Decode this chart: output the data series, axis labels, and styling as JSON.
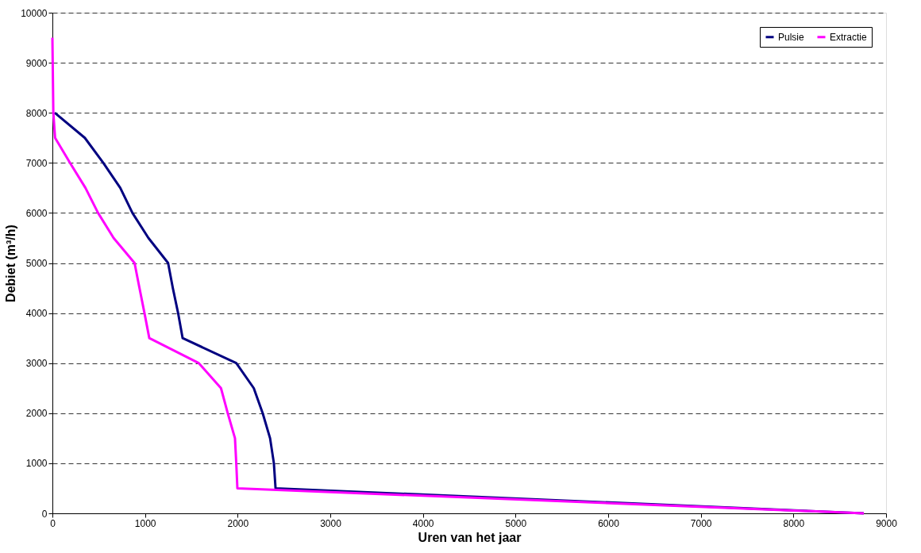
{
  "chart_data": {
    "type": "line",
    "xlabel": "Uren van het jaar",
    "ylabel": "Debiet (m³/h)",
    "xlim": [
      0,
      9000
    ],
    "xticks": [
      0,
      1000,
      2000,
      3000,
      4000,
      5000,
      6000,
      7000,
      8000,
      9000
    ],
    "ylim": [
      0,
      10000
    ],
    "yticks": [
      0,
      1000,
      2000,
      3000,
      4000,
      5000,
      6000,
      7000,
      8000,
      9000,
      10000
    ],
    "grid": "y",
    "legend": "top right",
    "marker": "none",
    "line_style": "solid",
    "series": [
      {
        "name": "Pulsie",
        "color": "#000080",
        "x": [
          25,
          350,
          550,
          733,
          864,
          1037,
          1249,
          1300,
          1357,
          1406,
          1985,
          2174,
          2270,
          2350,
          2391,
          2409,
          8760
        ],
        "values": [
          8000,
          7500,
          7000,
          6500,
          6000,
          5500,
          5000,
          4500,
          4000,
          3500,
          3000,
          2500,
          2000,
          1500,
          1000,
          500,
          0
        ]
      },
      {
        "name": "Extractie",
        "color": "#ff00ff",
        "x": [
          0,
          10,
          29,
          190,
          357,
          493,
          661,
          887,
          940,
          994,
          1046,
          1580,
          1820,
          1893,
          1971,
          1985,
          1997,
          8760
        ],
        "values": [
          9500,
          8000,
          7500,
          7000,
          6500,
          6000,
          5500,
          5000,
          4500,
          4000,
          3500,
          3000,
          2500,
          2000,
          1500,
          1000,
          500,
          0
        ]
      }
    ]
  }
}
